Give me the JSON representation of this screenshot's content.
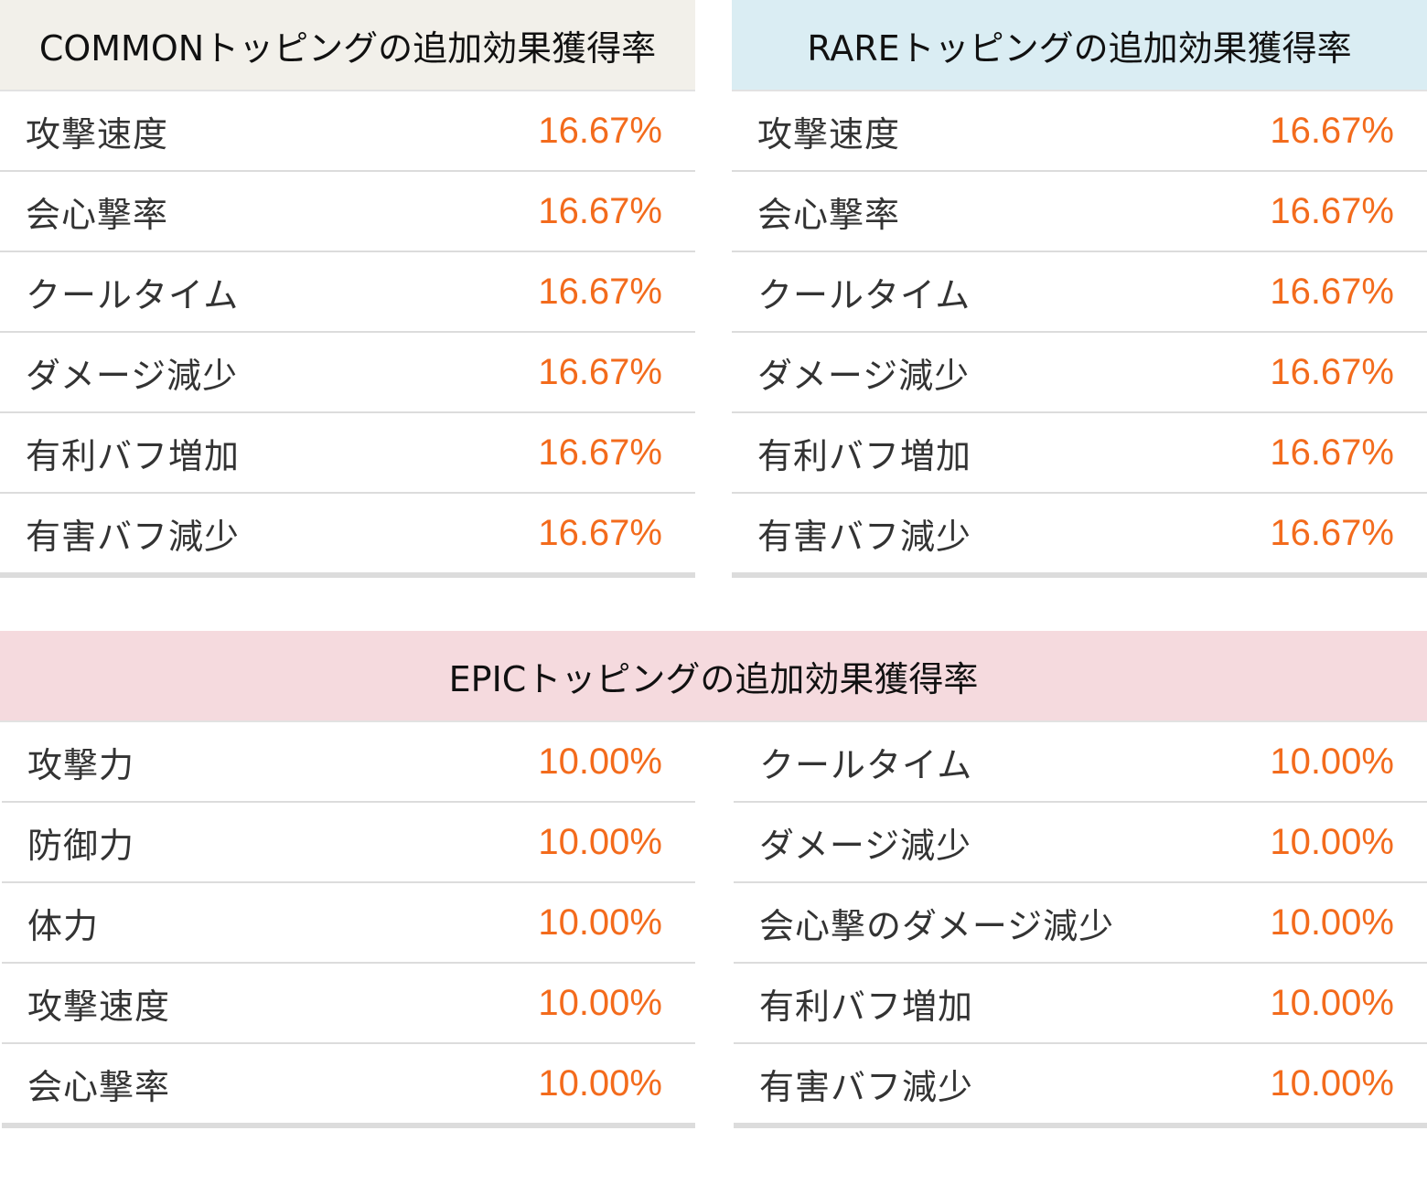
{
  "common": {
    "title": "COMMONトッピングの追加効果獲得率",
    "rows": [
      {
        "label": "攻撃速度",
        "value": "16.67%"
      },
      {
        "label": "会心撃率",
        "value": "16.67%"
      },
      {
        "label": "クールタイム",
        "value": "16.67%"
      },
      {
        "label": "ダメージ減少",
        "value": "16.67%"
      },
      {
        "label": "有利バフ増加",
        "value": "16.67%"
      },
      {
        "label": "有害バフ減少",
        "value": "16.67%"
      }
    ]
  },
  "rare": {
    "title": "RAREトッピングの追加効果獲得率",
    "rows": [
      {
        "label": "攻撃速度",
        "value": "16.67%"
      },
      {
        "label": "会心撃率",
        "value": "16.67%"
      },
      {
        "label": "クールタイム",
        "value": "16.67%"
      },
      {
        "label": "ダメージ減少",
        "value": "16.67%"
      },
      {
        "label": "有利バフ増加",
        "value": "16.67%"
      },
      {
        "label": "有害バフ減少",
        "value": "16.67%"
      }
    ]
  },
  "epic": {
    "title": "EPICトッピングの追加効果獲得率",
    "left_rows": [
      {
        "label": "攻撃力",
        "value": "10.00%"
      },
      {
        "label": "防御力",
        "value": "10.00%"
      },
      {
        "label": "体力",
        "value": "10.00%"
      },
      {
        "label": "攻撃速度",
        "value": "10.00%"
      },
      {
        "label": "会心撃率",
        "value": "10.00%"
      }
    ],
    "right_rows": [
      {
        "label": "クールタイム",
        "value": "10.00%"
      },
      {
        "label": "ダメージ減少",
        "value": "10.00%"
      },
      {
        "label": "会心撃のダメージ減少",
        "value": "10.00%"
      },
      {
        "label": "有利バフ増加",
        "value": "10.00%"
      },
      {
        "label": "有害バフ減少",
        "value": "10.00%"
      }
    ]
  },
  "colors": {
    "value_text": "#f36b1c",
    "common_header_bg": "#f2f0ea",
    "rare_header_bg": "#daedf3",
    "epic_header_bg": "#f5dade"
  }
}
